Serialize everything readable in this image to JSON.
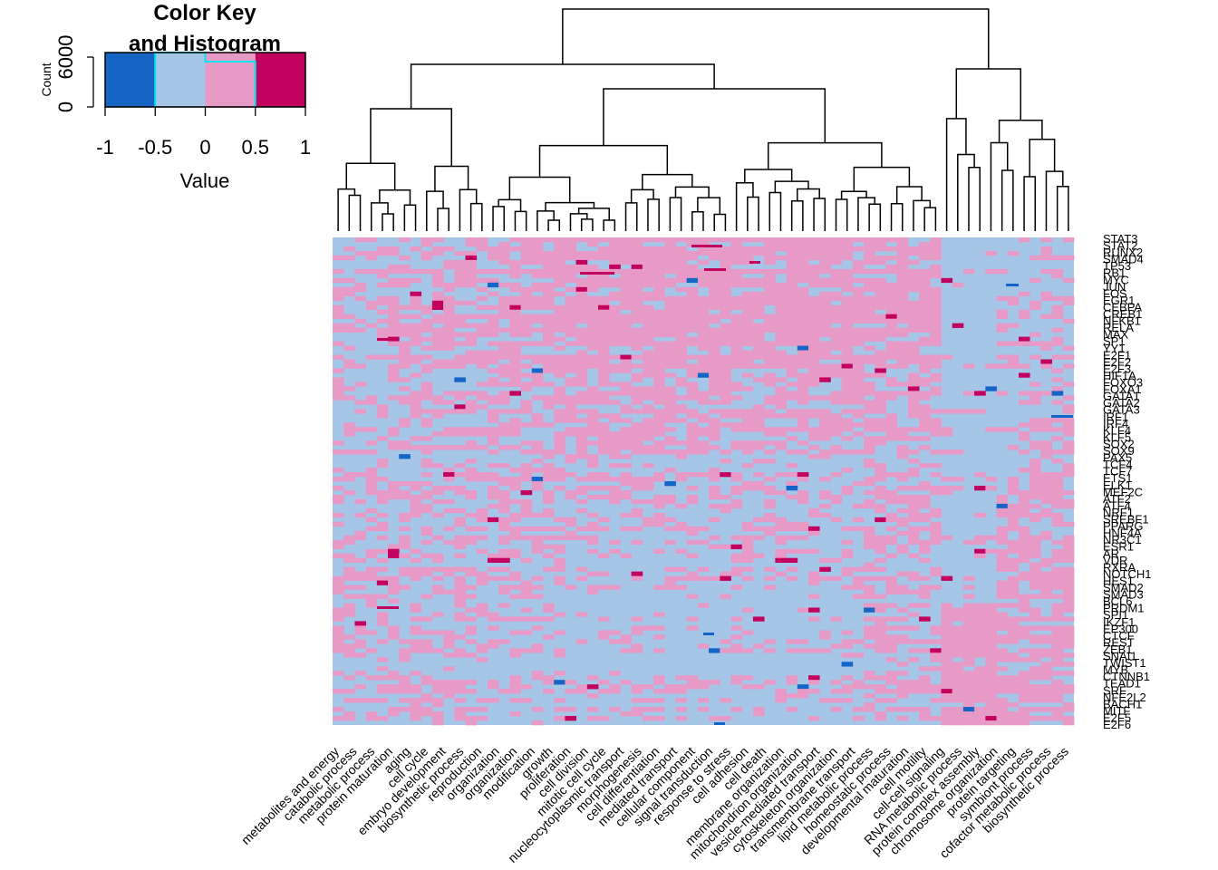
{
  "colors": {
    "c1": "#1565c7",
    "c2": "#a6c6e8",
    "c3": "#e89ac6",
    "c4": "#c2005e",
    "key_border": "#00e5ee"
  },
  "color_key": {
    "title_line1": "Color Key",
    "title_line2": "and Histogram",
    "count_label": "Count",
    "count_ticks": [
      "0",
      "6000"
    ],
    "value_label": "Value",
    "value_ticks": [
      "-1",
      "-0.5",
      "0",
      "0.5",
      "1"
    ]
  },
  "chart_data": {
    "type": "heatmap",
    "value_range": [
      -1,
      1
    ],
    "color_breaks": [
      -1,
      -0.5,
      0,
      0.5,
      1
    ],
    "column_labels": [
      "metabolites and energy",
      "catabolic process",
      "metabolic process",
      "protein maturation",
      "aging",
      "cell cycle",
      "embryo development",
      "biosynthetic process",
      "reproduction",
      "organization",
      "organization",
      "modification",
      "growth",
      "proliferation",
      "cell division",
      "mitotic cell cycle",
      "nucleocytoplasmic transport",
      "morphogenesis",
      "cell differentiation",
      "mediated transport",
      "cellular component",
      "signal transduction",
      "response to stress",
      "cell adhesion",
      "cell death",
      "membrane organization",
      "mitochondrion organization",
      "vesicle-mediated transport",
      "cytoskeleton organization",
      "transmembrane transport",
      "lipid metabolic process",
      "homeostatic process",
      "developmental maturation",
      "cell motility",
      "cell-cell signaling",
      "RNA metabolic process",
      "protein complex assembly",
      "chromosome organization",
      "protein targeting",
      "symbiont process",
      "cofactor metabolic process",
      "biosynthetic process"
    ],
    "row_labels": [
      "STAT3",
      "STAT2",
      "RUNX2",
      "SMAD4",
      "TP53",
      "RB1",
      "MYC",
      "JUN",
      "FOS",
      "EGR1",
      "CEBPA",
      "CREB1",
      "NFKB1",
      "RELA",
      "MAX",
      "SP1",
      "YY1",
      "E2F1",
      "E2F2",
      "E2F3",
      "HIF1A",
      "FOXO3",
      "FOXA1",
      "GATA1",
      "GATA2",
      "GATA3",
      "IRF1",
      "IRF4",
      "KLF4",
      "KLF5",
      "SOX2",
      "SOX9",
      "PAX5",
      "TCF4",
      "TCF7",
      "ETS1",
      "ELK1",
      "MEF2C",
      "ATF2",
      "ATF4",
      "NRF1",
      "SREBF1",
      "PPARG",
      "HNF4A",
      "NR3C1",
      "ESR1",
      "AR",
      "VDR",
      "RXRA",
      "NOTCH1",
      "HES1",
      "SMAD2",
      "SMAD3",
      "BCL6",
      "PRDM1",
      "SPI1",
      "IKZF1",
      "EP300",
      "CTCF",
      "REST",
      "ZEB1",
      "SNAI1",
      "TWIST1",
      "MYB",
      "CTNNB1",
      "TEAD1",
      "SRF",
      "NFE2L2",
      "BACH1",
      "MITF",
      "E2F5",
      "E2F6"
    ]
  }
}
